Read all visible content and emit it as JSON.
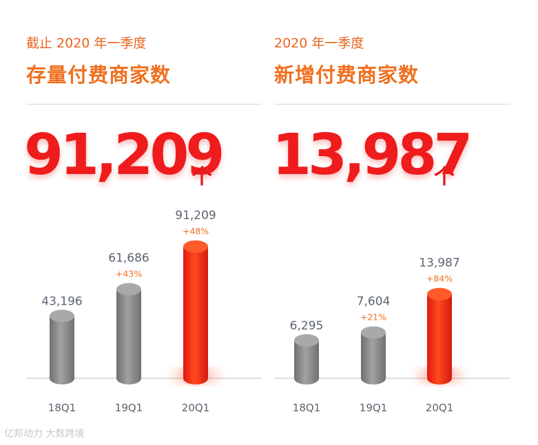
{
  "colors": {
    "accent": "#f07020",
    "highlight": "#ee1c1c",
    "bar_gray": "#8c8c8c",
    "text_gray": "#5b6470"
  },
  "panels": [
    {
      "subtitle": "截止 2020 年一季度",
      "title": "存量付费商家数",
      "value": "91,209",
      "unit": "个",
      "chart_data": {
        "type": "bar",
        "categories": [
          "18Q1",
          "19Q1",
          "20Q1"
        ],
        "values": [
          43196,
          61686,
          91209
        ],
        "value_labels": [
          "43,196",
          "61,686",
          "91,209"
        ],
        "growth_labels": [
          "",
          "+43%",
          "+48%"
        ],
        "highlight_index": 2,
        "ylim": [
          0,
          100000
        ]
      }
    },
    {
      "subtitle": "2020 年一季度",
      "title": "新增付费商家数",
      "value": "13,987",
      "unit": "个",
      "chart_data": {
        "type": "bar",
        "categories": [
          "18Q1",
          "19Q1",
          "20Q1"
        ],
        "values": [
          6295,
          7604,
          13987
        ],
        "value_labels": [
          "6,295",
          "7,604",
          "13,987"
        ],
        "growth_labels": [
          "",
          "+21%",
          "+84%"
        ],
        "highlight_index": 2,
        "ylim": [
          0,
          24000
        ]
      }
    }
  ],
  "watermark": "亿邦动力 大数跨境"
}
